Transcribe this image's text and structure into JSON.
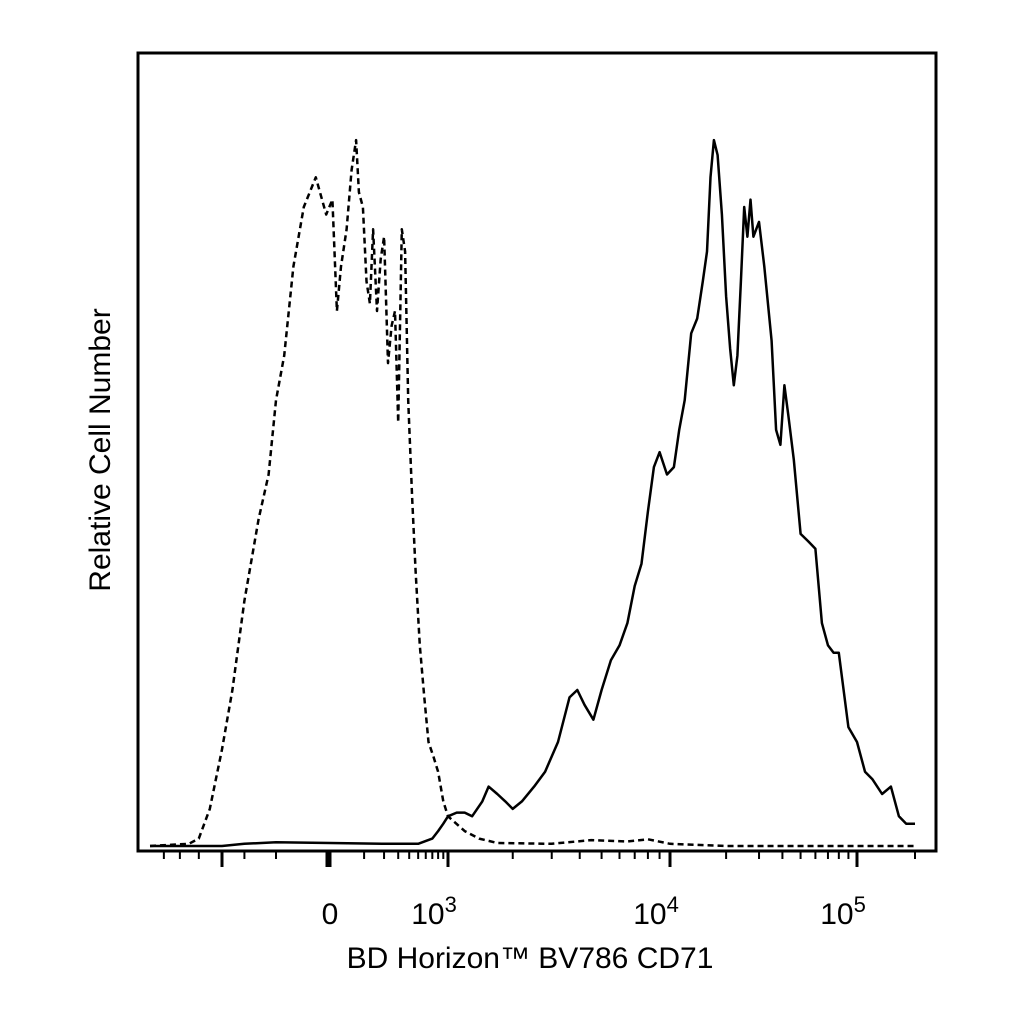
{
  "chart_data": {
    "type": "line",
    "title": "",
    "xlabel": "BD Horizon™ BV786 CD71",
    "ylabel": "Relative Cell Number",
    "x_scale": "biexponential",
    "xlim": [
      -700,
      200000
    ],
    "ylim": [
      0,
      100
    ],
    "grid": false,
    "legend": "none",
    "x_tick_labels": [
      {
        "value": 0,
        "base": "0",
        "exp": ""
      },
      {
        "value": 1000,
        "base": "10",
        "exp": "3"
      },
      {
        "value": 10000,
        "base": "10",
        "exp": "4"
      },
      {
        "value": 100000,
        "base": "10",
        "exp": "5"
      }
    ],
    "series": [
      {
        "style": "dashed",
        "color": "#000000",
        "points": [
          [
            -700,
            0
          ],
          [
            -450,
            0.3
          ],
          [
            -400,
            1
          ],
          [
            -350,
            5
          ],
          [
            -300,
            13
          ],
          [
            -250,
            21
          ],
          [
            -200,
            33
          ],
          [
            -150,
            44
          ],
          [
            -120,
            50
          ],
          [
            -100,
            60
          ],
          [
            -80,
            66
          ],
          [
            -60,
            78
          ],
          [
            -40,
            86
          ],
          [
            -20,
            90
          ],
          [
            -5,
            85
          ],
          [
            5,
            87
          ],
          [
            15,
            72
          ],
          [
            25,
            78
          ],
          [
            40,
            83
          ],
          [
            55,
            91
          ],
          [
            70,
            95
          ],
          [
            80,
            88
          ],
          [
            95,
            86
          ],
          [
            110,
            76
          ],
          [
            125,
            73
          ],
          [
            140,
            83
          ],
          [
            160,
            72
          ],
          [
            180,
            79
          ],
          [
            200,
            82
          ],
          [
            225,
            65
          ],
          [
            250,
            70
          ],
          [
            275,
            72
          ],
          [
            300,
            57
          ],
          [
            330,
            83
          ],
          [
            360,
            80
          ],
          [
            390,
            60
          ],
          [
            430,
            47
          ],
          [
            470,
            37
          ],
          [
            520,
            27
          ],
          [
            580,
            20
          ],
          [
            640,
            14
          ],
          [
            720,
            12
          ],
          [
            800,
            10
          ],
          [
            900,
            6
          ],
          [
            1000,
            4
          ],
          [
            1200,
            2
          ],
          [
            1400,
            1
          ],
          [
            1700,
            0.4
          ],
          [
            3000,
            0.3
          ],
          [
            4500,
            0.8
          ],
          [
            6500,
            0.6
          ],
          [
            8000,
            0.9
          ],
          [
            10000,
            0.3
          ],
          [
            20000,
            0
          ],
          [
            200000,
            0
          ]
        ]
      },
      {
        "style": "solid",
        "color": "#000000",
        "points": [
          [
            -700,
            0
          ],
          [
            -300,
            0
          ],
          [
            -200,
            0.3
          ],
          [
            -100,
            0.5
          ],
          [
            0,
            0.4
          ],
          [
            200,
            0.3
          ],
          [
            500,
            0.3
          ],
          [
            700,
            1
          ],
          [
            800,
            2
          ],
          [
            900,
            3
          ],
          [
            1000,
            4
          ],
          [
            1100,
            4.5
          ],
          [
            1200,
            4.5
          ],
          [
            1300,
            4
          ],
          [
            1450,
            6
          ],
          [
            1550,
            8
          ],
          [
            1700,
            7
          ],
          [
            1850,
            6
          ],
          [
            2000,
            5
          ],
          [
            2200,
            6
          ],
          [
            2500,
            8
          ],
          [
            2800,
            10
          ],
          [
            3200,
            14
          ],
          [
            3600,
            20
          ],
          [
            3900,
            21
          ],
          [
            4200,
            19
          ],
          [
            4600,
            17
          ],
          [
            5000,
            21
          ],
          [
            5500,
            25
          ],
          [
            6000,
            27
          ],
          [
            6500,
            30
          ],
          [
            7000,
            35
          ],
          [
            7500,
            38
          ],
          [
            8000,
            45
          ],
          [
            8500,
            51
          ],
          [
            9000,
            53
          ],
          [
            9700,
            50
          ],
          [
            10500,
            51
          ],
          [
            11200,
            56
          ],
          [
            12000,
            60
          ],
          [
            13000,
            69
          ],
          [
            14000,
            71
          ],
          [
            15000,
            76
          ],
          [
            15800,
            80
          ],
          [
            16500,
            90
          ],
          [
            17200,
            95
          ],
          [
            18000,
            93
          ],
          [
            19000,
            85
          ],
          [
            20000,
            74
          ],
          [
            21000,
            67
          ],
          [
            22000,
            62
          ],
          [
            23000,
            66
          ],
          [
            24000,
            76
          ],
          [
            25000,
            86
          ],
          [
            26000,
            82
          ],
          [
            27000,
            87
          ],
          [
            28000,
            82
          ],
          [
            30000,
            84
          ],
          [
            32000,
            78
          ],
          [
            35000,
            68
          ],
          [
            37000,
            56
          ],
          [
            39000,
            54
          ],
          [
            41000,
            62
          ],
          [
            43000,
            58
          ],
          [
            46000,
            52
          ],
          [
            50000,
            42
          ],
          [
            55000,
            41
          ],
          [
            60000,
            40
          ],
          [
            65000,
            30
          ],
          [
            70000,
            27
          ],
          [
            75000,
            26
          ],
          [
            80000,
            26
          ],
          [
            90000,
            16
          ],
          [
            100000,
            14
          ],
          [
            110000,
            10
          ],
          [
            120000,
            9
          ],
          [
            135000,
            7
          ],
          [
            150000,
            8
          ],
          [
            165000,
            4
          ],
          [
            180000,
            3
          ],
          [
            200000,
            3
          ]
        ]
      }
    ]
  }
}
